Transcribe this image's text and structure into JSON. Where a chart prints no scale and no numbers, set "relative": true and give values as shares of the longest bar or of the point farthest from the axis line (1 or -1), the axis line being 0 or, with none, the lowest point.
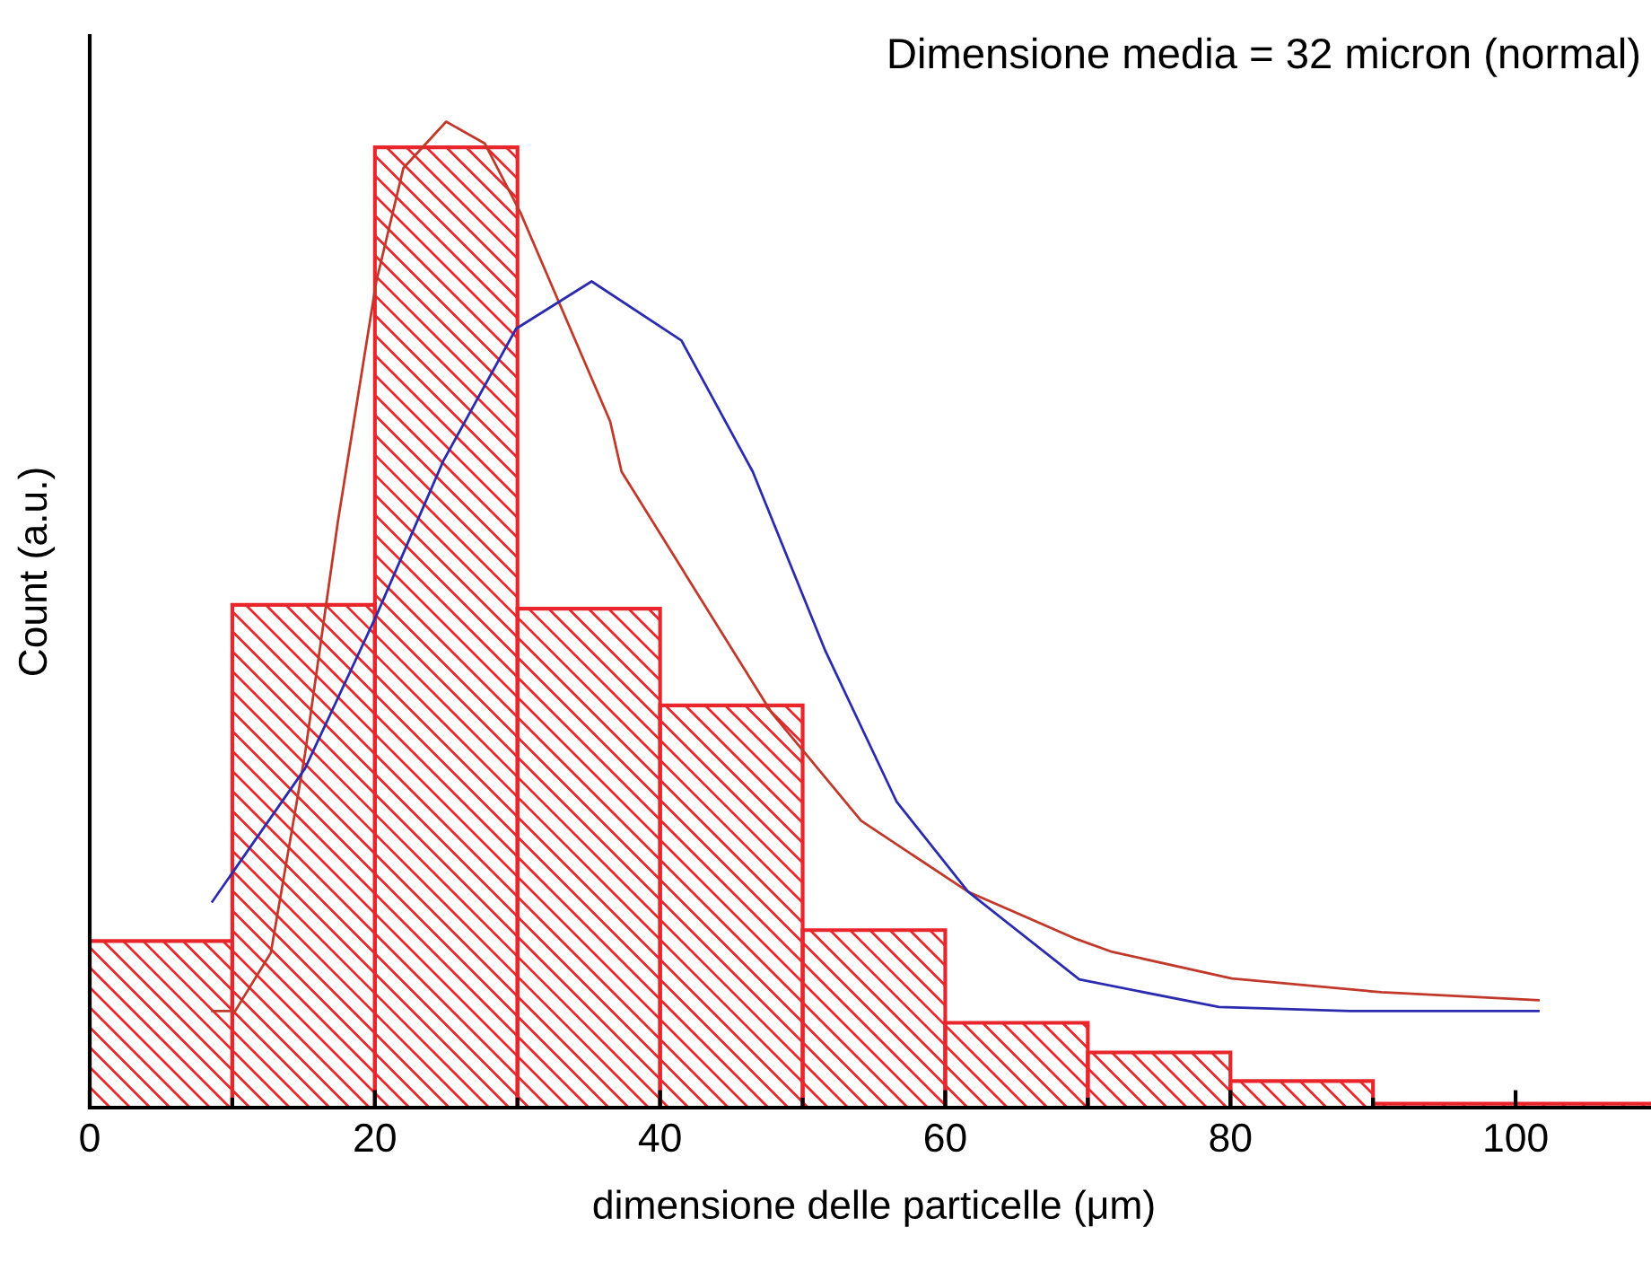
{
  "chart_data": {
    "type": "histogram",
    "relative": true,
    "xlabel": "dimensione delle particelle (μm)",
    "ylabel": "Count (a.u.)",
    "annotations": [
      "Dimensione media = 32 micron (normal)"
    ],
    "bins": [
      0,
      10,
      20,
      30,
      40,
      50,
      60,
      70,
      80,
      90,
      100,
      110
    ],
    "values": [
      0.169,
      0.51,
      0.974,
      0.506,
      0.408,
      0.18,
      0.086,
      0.056,
      0.027,
      0.004,
      0.004
    ],
    "color": "#e8262b",
    "xlim": [
      0,
      110
    ],
    "xticks": [
      0,
      {
        "value": 10,
        "label": null
      },
      20,
      {
        "value": 30,
        "label": null
      },
      40,
      {
        "value": 50,
        "label": null
      },
      60,
      {
        "value": 70,
        "label": null
      },
      80,
      {
        "value": 90,
        "label": null
      },
      100
    ],
    "grid": false,
    "legend": false,
    "series": [
      {
        "type": "line",
        "color": "#c0392b",
        "x": [
          8.6,
          10.2,
          12.7,
          15.1,
          17.4,
          20.1,
          22.0,
          25.0,
          27.7,
          30.2,
          36.5,
          37.3,
          47.8,
          54.1,
          61.6,
          69.2,
          71.7,
          80.1,
          90.6,
          101.6
        ],
        "values": [
          0.098,
          0.098,
          0.157,
          0.359,
          0.594,
          0.838,
          0.953,
          1.0,
          0.978,
          0.908,
          0.696,
          0.645,
          0.401,
          0.291,
          0.219,
          0.171,
          0.158,
          0.131,
          0.117,
          0.109
        ]
      },
      {
        "type": "line",
        "color": "#2b2bb0",
        "x": [
          8.6,
          15.1,
          20.1,
          24.8,
          29.9,
          35.2,
          41.5,
          46.5,
          51.6,
          56.6,
          61.6,
          69.4,
          79.2,
          88.4,
          101.6
        ],
        "values": [
          0.209,
          0.344,
          0.499,
          0.656,
          0.79,
          0.838,
          0.778,
          0.645,
          0.463,
          0.31,
          0.219,
          0.13,
          0.102,
          0.098,
          0.098
        ]
      }
    ]
  }
}
